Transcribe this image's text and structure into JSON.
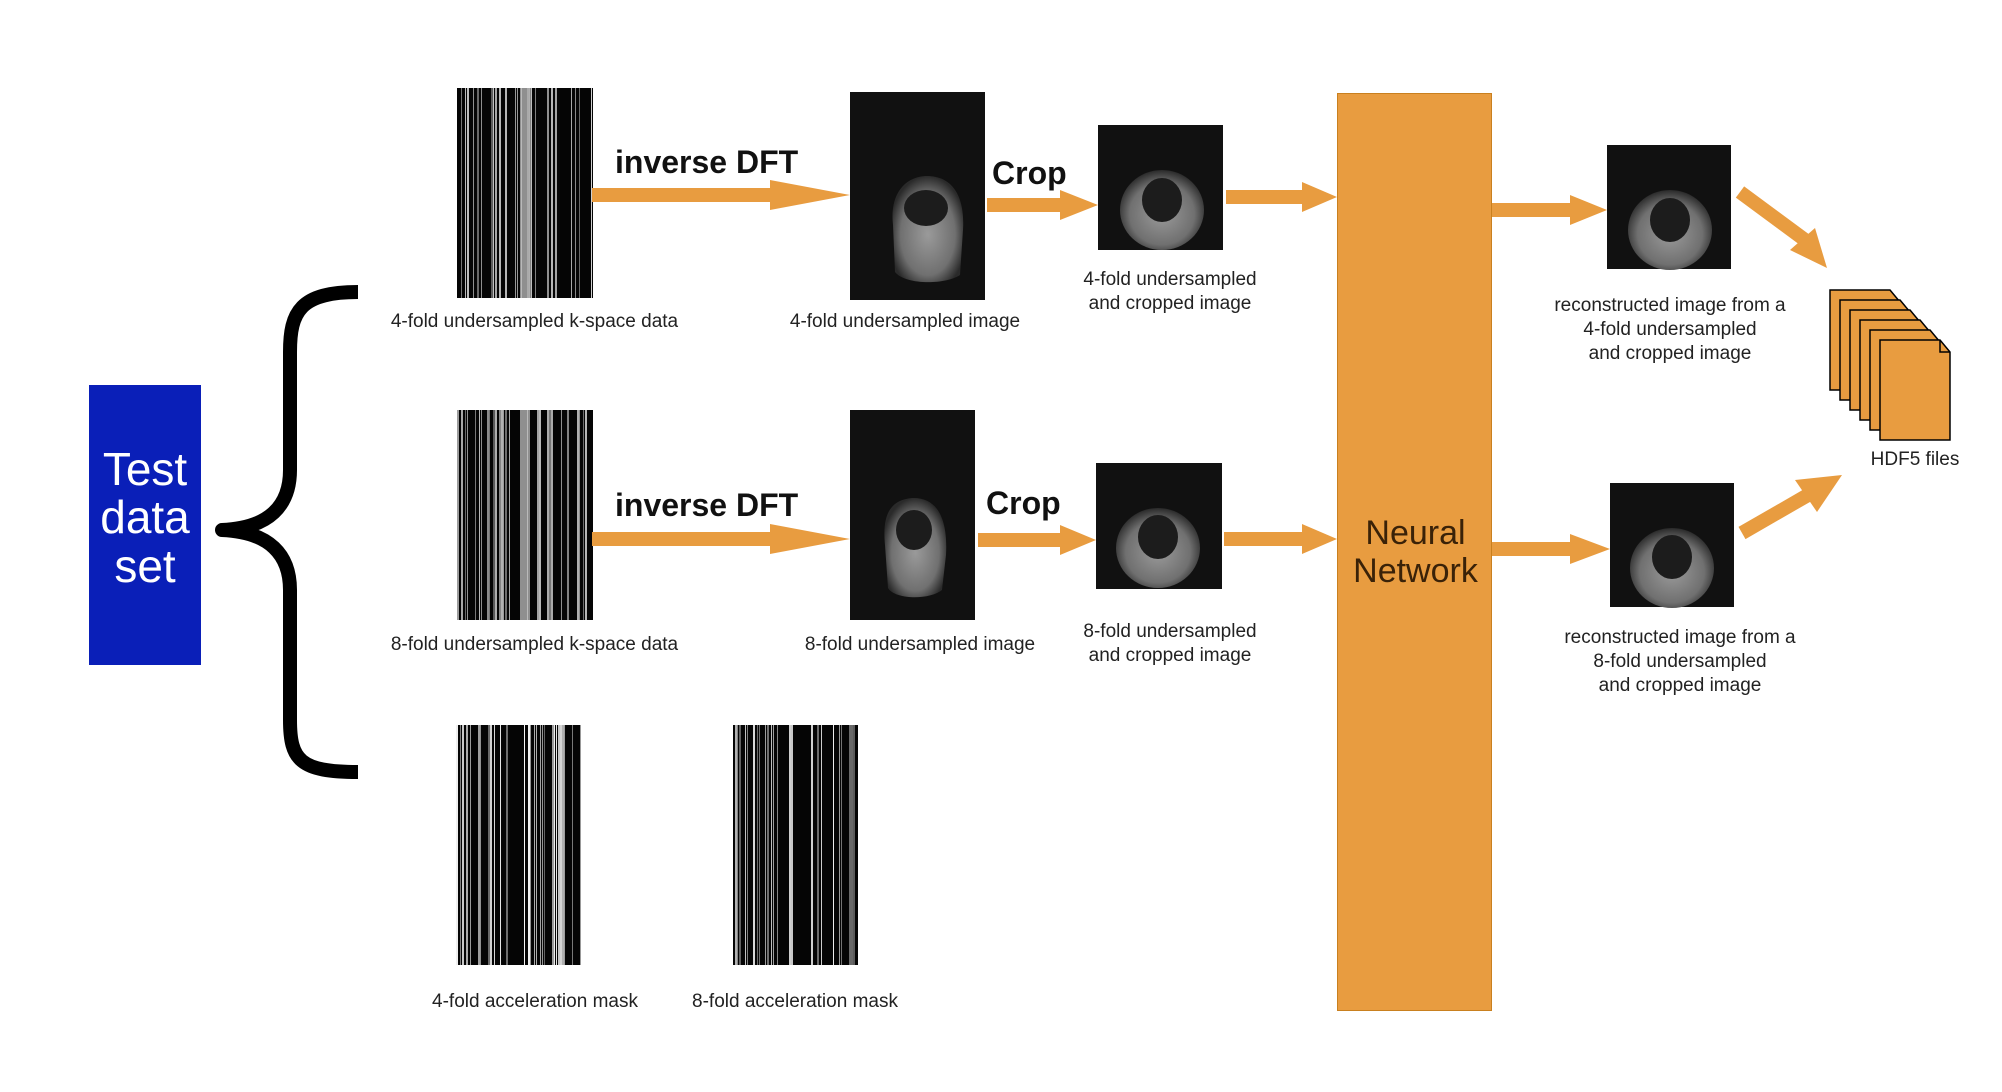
{
  "left_box": {
    "label": "Test\ndata\nset",
    "color": "#0a1fb8"
  },
  "network": {
    "label": "Neural\nNetwork",
    "color": "#e89c40"
  },
  "arrow_color": "#e89c40",
  "operations": {
    "inverse_dft_top": "inverse DFT",
    "crop_top": "Crop",
    "inverse_dft_bottom": "inverse DFT",
    "crop_bottom": "Crop"
  },
  "labels": {
    "kspace_4": "4-fold undersampled k-space data",
    "image_4": "4-fold undersampled image",
    "cropped_4": "4-fold undersampled\nand cropped image",
    "recon_4": "reconstructed image from a\n4-fold undersampled\nand cropped image",
    "kspace_8": "8-fold undersampled k-space data",
    "image_8": "8-fold undersampled image",
    "cropped_8": "8-fold undersampled\nand cropped image",
    "recon_8": "reconstructed image from a\n8-fold undersampled\nand cropped image",
    "mask_4": "4-fold acceleration mask",
    "mask_8": "8-fold acceleration mask",
    "files": "HDF5 files"
  },
  "icons": {
    "brace": "curly-brace-icon",
    "files": "stacked-files-icon"
  }
}
